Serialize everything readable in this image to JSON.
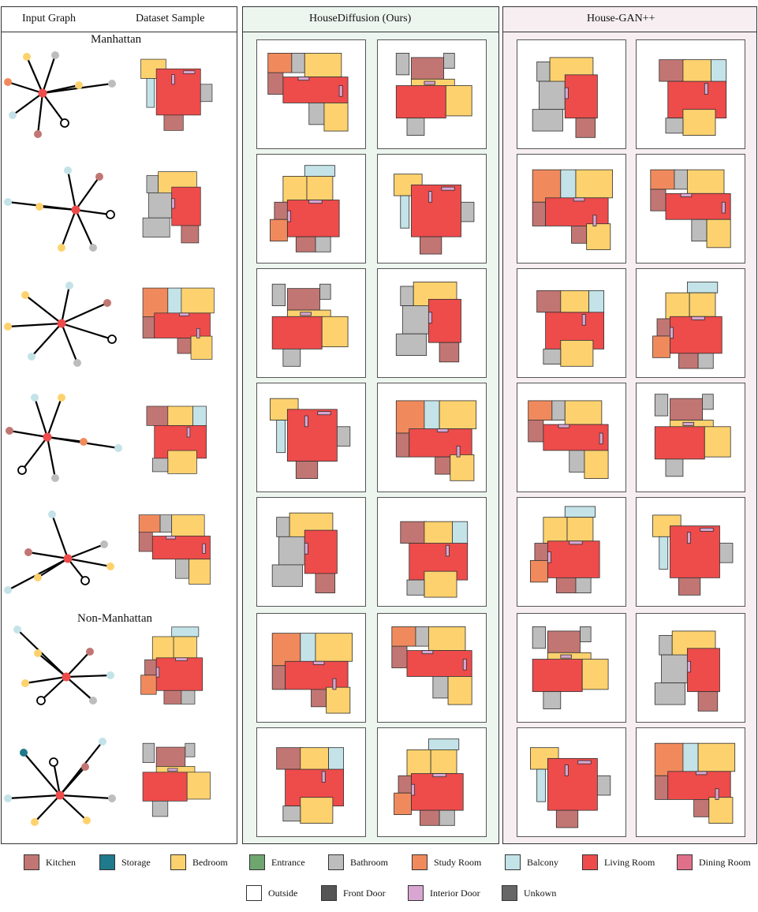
{
  "headers": {
    "input_graph": "Input Graph",
    "dataset_sample": "Dataset Sample",
    "ours": "HouseDiffusion (Ours)",
    "baseline": "House-GAN++"
  },
  "section_labels": {
    "manhattan": "Manhattan",
    "non_manhattan": "Non-Manhattan"
  },
  "colors": {
    "kitchen": "#c27673",
    "storage": "#1f7a8c",
    "bedroom": "#fdd26e",
    "entrance": "#6fa56f",
    "bathroom": "#bdbdbd",
    "study": "#f08a5d",
    "balcony": "#c3e3e8",
    "living": "#ee4b4b",
    "dining": "#e0708a",
    "outside": "#ffffff",
    "frontdoor": "#555555",
    "interior_door": "#d8a6d1",
    "unknown": "#666666",
    "ours_bg": "#edf5ef",
    "baseline_bg": "#f6eef0"
  },
  "legend": [
    {
      "label": "Kitchen",
      "color": "#c27673"
    },
    {
      "label": "Storage",
      "color": "#1f7a8c"
    },
    {
      "label": "Bedroom",
      "color": "#fdd26e"
    },
    {
      "label": "Entrance",
      "color": "#6fa56f"
    },
    {
      "label": "Bathroom",
      "color": "#bdbdbd"
    },
    {
      "label": "Study Room",
      "color": "#f08a5d"
    },
    {
      "label": "Balcony",
      "color": "#c3e3e8"
    },
    {
      "label": "Living Room",
      "color": "#ee4b4b"
    },
    {
      "label": "Dining Room",
      "color": "#e0708a"
    },
    {
      "label": "Outside",
      "color": "#ffffff"
    },
    {
      "label": "Front Door",
      "color": "#555555"
    },
    {
      "label": "Interior Door",
      "color": "#d8a6d1"
    },
    {
      "label": "Unkown",
      "color": "#666666"
    }
  ]
}
